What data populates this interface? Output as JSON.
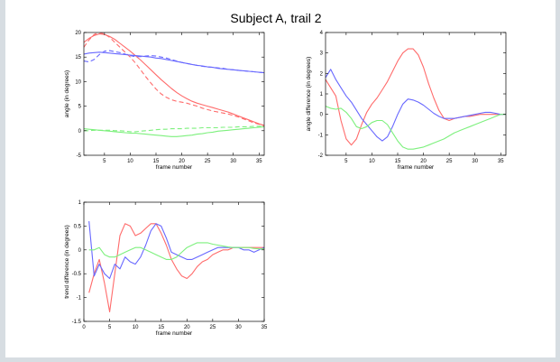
{
  "figure": {
    "title": "Subject A, trail 2"
  },
  "colors": {
    "red": "#ff6b6b",
    "blue": "#6868ff",
    "green": "#7df07d",
    "axes": "#000000",
    "background": "#ffffff",
    "page": "#d7dde2"
  },
  "chart_data": [
    {
      "type": "line",
      "title": "",
      "xlabel": "frame number",
      "ylabel": "angle (in degrees)",
      "xlim": [
        1,
        36
      ],
      "ylim": [
        -5,
        20
      ],
      "xticks": [
        5,
        10,
        15,
        20,
        25,
        30,
        35
      ],
      "yticks": [
        -5,
        0,
        5,
        10,
        15,
        20
      ],
      "grid": false,
      "series": [
        {
          "color": "red",
          "style": "solid",
          "x": [
            1,
            2,
            3,
            4,
            5,
            6,
            7,
            8,
            9,
            10,
            11,
            12,
            13,
            14,
            15,
            16,
            17,
            18,
            19,
            20,
            21,
            22,
            23,
            24,
            25,
            26,
            27,
            28,
            29,
            30,
            31,
            32,
            33,
            34,
            35,
            36
          ],
          "y": [
            18,
            18.8,
            19.4,
            19.7,
            19.6,
            19.2,
            18.6,
            17.8,
            17,
            16.2,
            15.3,
            14.4,
            13.4,
            12.4,
            11.4,
            10.4,
            9.5,
            8.6,
            7.8,
            7.1,
            6.5,
            6,
            5.6,
            5.3,
            5,
            4.7,
            4.4,
            4.1,
            3.8,
            3.4,
            3,
            2.6,
            2.2,
            1.8,
            1.4,
            1.1
          ]
        },
        {
          "color": "red",
          "style": "dashed",
          "x": [
            1,
            2,
            3,
            4,
            5,
            6,
            7,
            8,
            9,
            10,
            11,
            12,
            13,
            14,
            15,
            16,
            17,
            18,
            19,
            20,
            21,
            22,
            23,
            24,
            25,
            26,
            27,
            28,
            29,
            30,
            31,
            32,
            33,
            34,
            35,
            36
          ],
          "y": [
            17,
            18.5,
            19.6,
            20,
            19.7,
            19,
            18,
            17,
            16,
            15,
            13.8,
            12.4,
            11,
            9.7,
            8.5,
            7.5,
            6.8,
            6.3,
            6,
            5.8,
            5.6,
            5.3,
            5,
            4.6,
            4.3,
            4,
            3.8,
            3.6,
            3.4,
            3.1,
            2.8,
            2.4,
            2,
            1.6,
            1.3,
            1
          ]
        },
        {
          "color": "blue",
          "style": "solid",
          "x": [
            1,
            2,
            3,
            4,
            5,
            6,
            7,
            8,
            9,
            10,
            11,
            12,
            13,
            14,
            15,
            16,
            17,
            18,
            19,
            20,
            21,
            22,
            23,
            24,
            25,
            26,
            27,
            28,
            29,
            30,
            31,
            32,
            33,
            34,
            35,
            36
          ],
          "y": [
            15.6,
            15.8,
            15.9,
            16,
            15.9,
            15.8,
            15.7,
            15.6,
            15.5,
            15.4,
            15.3,
            15.2,
            15.1,
            15,
            14.8,
            14.7,
            14.5,
            14.3,
            14.1,
            13.9,
            13.7,
            13.5,
            13.3,
            13.2,
            13,
            12.9,
            12.7,
            12.6,
            12.5,
            12.4,
            12.3,
            12.2,
            12.1,
            12,
            11.9,
            11.8
          ]
        },
        {
          "color": "blue",
          "style": "dashed",
          "x": [
            1,
            2,
            3,
            4,
            5,
            6,
            7,
            8,
            9,
            10,
            11,
            12,
            13,
            14,
            15,
            16,
            17,
            18,
            19,
            20,
            21,
            22,
            23,
            24,
            25,
            26,
            27,
            28,
            29,
            30,
            31,
            32,
            33,
            34,
            35,
            36
          ],
          "y": [
            14.2,
            14,
            14.5,
            15.5,
            16.2,
            16.3,
            16.1,
            15.9,
            15.6,
            15.3,
            15.1,
            15.1,
            15.2,
            15.3,
            15.2,
            15,
            14.8,
            14.5,
            14.2,
            13.9,
            13.7,
            13.5,
            13.3,
            13.1,
            13,
            12.9,
            12.8,
            12.7,
            12.5,
            12.4,
            12.3,
            12.2,
            12.1,
            12,
            11.9,
            11.8
          ]
        },
        {
          "color": "green",
          "style": "solid",
          "x": [
            1,
            2,
            3,
            4,
            5,
            6,
            7,
            8,
            9,
            10,
            11,
            12,
            13,
            14,
            15,
            16,
            17,
            18,
            19,
            20,
            21,
            22,
            23,
            24,
            25,
            26,
            27,
            28,
            29,
            30,
            31,
            32,
            33,
            34,
            35,
            36
          ],
          "y": [
            0.4,
            0.3,
            0.2,
            0.1,
            0,
            -0.1,
            -0.2,
            -0.3,
            -0.4,
            -0.5,
            -0.5,
            -0.6,
            -0.7,
            -0.8,
            -0.9,
            -1,
            -1.1,
            -1.2,
            -1.2,
            -1.1,
            -1,
            -0.9,
            -0.7,
            -0.6,
            -0.4,
            -0.3,
            -0.1,
            0,
            0.1,
            0.2,
            0.3,
            0.4,
            0.5,
            0.6,
            0.7,
            0.8
          ]
        },
        {
          "color": "green",
          "style": "dashed",
          "x": [
            1,
            2,
            3,
            4,
            5,
            6,
            7,
            8,
            9,
            10,
            11,
            12,
            13,
            14,
            15,
            16,
            17,
            18,
            19,
            20,
            21,
            22,
            23,
            24,
            25,
            26,
            27,
            28,
            29,
            30,
            31,
            32,
            33,
            34,
            35,
            36
          ],
          "y": [
            0,
            0,
            0.1,
            0.1,
            0.1,
            0.1,
            0,
            0,
            -0.1,
            -0.2,
            -0.2,
            -0.1,
            0,
            0.1,
            0.2,
            0.3,
            0.3,
            0.4,
            0.4,
            0.4,
            0.5,
            0.5,
            0.5,
            0.6,
            0.6,
            0.6,
            0.6,
            0.7,
            0.7,
            0.7,
            0.8,
            0.8,
            0.8,
            0.9,
            0.9,
            0.9
          ]
        }
      ]
    },
    {
      "type": "line",
      "title": "",
      "xlabel": "frame number",
      "ylabel": "angle difference (in degrees)",
      "xlim": [
        1,
        36
      ],
      "ylim": [
        -2,
        4
      ],
      "xticks": [
        5,
        10,
        15,
        20,
        25,
        30,
        35
      ],
      "yticks": [
        -2,
        -1,
        0,
        1,
        2,
        3,
        4
      ],
      "grid": false,
      "series": [
        {
          "color": "red",
          "style": "solid",
          "x": [
            1,
            2,
            3,
            4,
            5,
            6,
            7,
            8,
            9,
            10,
            11,
            12,
            13,
            14,
            15,
            16,
            17,
            18,
            19,
            20,
            21,
            22,
            23,
            24,
            25,
            26,
            27,
            28,
            29,
            30,
            31,
            32,
            33,
            34,
            35,
            36
          ],
          "y": [
            1.7,
            1.3,
            0.9,
            -0.3,
            -1.2,
            -1.5,
            -1.2,
            -0.5,
            0.1,
            0.5,
            0.8,
            1.2,
            1.6,
            2.1,
            2.6,
            3,
            3.2,
            3.2,
            2.9,
            2.3,
            1.5,
            0.8,
            0.2,
            -0.2,
            -0.3,
            -0.2,
            -0.15,
            -0.1,
            -0.1,
            -0.05,
            0,
            0,
            0,
            0,
            0,
            0
          ]
        },
        {
          "color": "blue",
          "style": "solid",
          "x": [
            1,
            2,
            3,
            4,
            5,
            6,
            7,
            8,
            9,
            10,
            11,
            12,
            13,
            14,
            15,
            16,
            17,
            18,
            19,
            20,
            21,
            22,
            23,
            24,
            25,
            26,
            27,
            28,
            29,
            30,
            31,
            32,
            33,
            34,
            35,
            36
          ],
          "y": [
            1.8,
            2.2,
            1.7,
            1.3,
            0.9,
            0.6,
            0.2,
            -0.2,
            -0.5,
            -0.8,
            -1.1,
            -1.3,
            -1.1,
            -0.6,
            0,
            0.5,
            0.75,
            0.7,
            0.6,
            0.45,
            0.25,
            0.05,
            -0.1,
            -0.2,
            -0.2,
            -0.2,
            -0.15,
            -0.1,
            -0.05,
            0,
            0.05,
            0.1,
            0.1,
            0.05,
            0,
            0
          ]
        },
        {
          "color": "green",
          "style": "solid",
          "x": [
            1,
            2,
            3,
            4,
            5,
            6,
            7,
            8,
            9,
            10,
            11,
            12,
            13,
            14,
            15,
            16,
            17,
            18,
            19,
            20,
            21,
            22,
            23,
            24,
            25,
            26,
            27,
            28,
            29,
            30,
            31,
            32,
            33,
            34,
            35,
            36
          ],
          "y": [
            0.4,
            0.3,
            0.25,
            0.3,
            0.1,
            -0.2,
            -0.6,
            -0.7,
            -0.6,
            -0.4,
            -0.3,
            -0.3,
            -0.5,
            -0.9,
            -1.3,
            -1.6,
            -1.7,
            -1.7,
            -1.65,
            -1.6,
            -1.5,
            -1.4,
            -1.3,
            -1.2,
            -1.05,
            -0.9,
            -0.8,
            -0.7,
            -0.6,
            -0.5,
            -0.4,
            -0.3,
            -0.2,
            -0.1,
            0,
            0
          ]
        }
      ]
    },
    {
      "type": "line",
      "title": "",
      "xlabel": "frame number",
      "ylabel": "trend difference (in degrees)",
      "xlim": [
        0,
        35
      ],
      "ylim": [
        -1.5,
        1
      ],
      "xticks": [
        0,
        5,
        10,
        15,
        20,
        25,
        30,
        35
      ],
      "yticks": [
        -1.5,
        -1,
        -0.5,
        0,
        0.5,
        1
      ],
      "grid": false,
      "series": [
        {
          "color": "red",
          "style": "solid",
          "x": [
            1,
            2,
            3,
            4,
            5,
            6,
            7,
            8,
            9,
            10,
            11,
            12,
            13,
            14,
            15,
            16,
            17,
            18,
            19,
            20,
            21,
            22,
            23,
            24,
            25,
            26,
            27,
            28,
            29,
            30,
            31,
            32,
            33,
            34,
            35
          ],
          "y": [
            -0.9,
            -0.5,
            -0.2,
            -0.7,
            -1.3,
            -0.5,
            0.3,
            0.55,
            0.5,
            0.3,
            0.35,
            0.45,
            0.55,
            0.55,
            0.35,
            0.1,
            -0.2,
            -0.4,
            -0.55,
            -0.6,
            -0.5,
            -0.35,
            -0.25,
            -0.2,
            -0.1,
            -0.05,
            0,
            0,
            0.05,
            0.05,
            0.05,
            0.05,
            0.05,
            0.05,
            0.05
          ]
        },
        {
          "color": "blue",
          "style": "solid",
          "x": [
            1,
            2,
            3,
            4,
            5,
            6,
            7,
            8,
            9,
            10,
            11,
            12,
            13,
            14,
            15,
            16,
            17,
            18,
            19,
            20,
            21,
            22,
            23,
            24,
            25,
            26,
            27,
            28,
            29,
            30,
            31,
            32,
            33,
            34,
            35
          ],
          "y": [
            0.6,
            -0.55,
            -0.3,
            -0.5,
            -0.6,
            -0.3,
            -0.4,
            -0.15,
            -0.25,
            -0.3,
            -0.15,
            0.1,
            0.4,
            0.55,
            0.5,
            0.25,
            -0.05,
            -0.1,
            -0.15,
            -0.2,
            -0.2,
            -0.15,
            -0.1,
            -0.05,
            0,
            0.05,
            0.05,
            0.05,
            0.05,
            0.05,
            0,
            0,
            -0.05,
            0,
            0.05
          ]
        },
        {
          "color": "green",
          "style": "solid",
          "x": [
            1,
            2,
            3,
            4,
            5,
            6,
            7,
            8,
            9,
            10,
            11,
            12,
            13,
            14,
            15,
            16,
            17,
            18,
            19,
            20,
            21,
            22,
            23,
            24,
            25,
            26,
            27,
            28,
            29,
            30,
            31,
            32,
            33,
            34,
            35
          ],
          "y": [
            0,
            0,
            0.05,
            -0.1,
            -0.15,
            -0.15,
            -0.1,
            -0.05,
            0,
            0.05,
            0.05,
            0,
            -0.05,
            -0.1,
            -0.15,
            -0.2,
            -0.2,
            -0.15,
            -0.05,
            0.05,
            0.1,
            0.15,
            0.15,
            0.15,
            0.12,
            0.1,
            0.08,
            0.06,
            0.05,
            0.05,
            0.05,
            0.05,
            0.03,
            0.02,
            0.02
          ]
        }
      ]
    }
  ]
}
